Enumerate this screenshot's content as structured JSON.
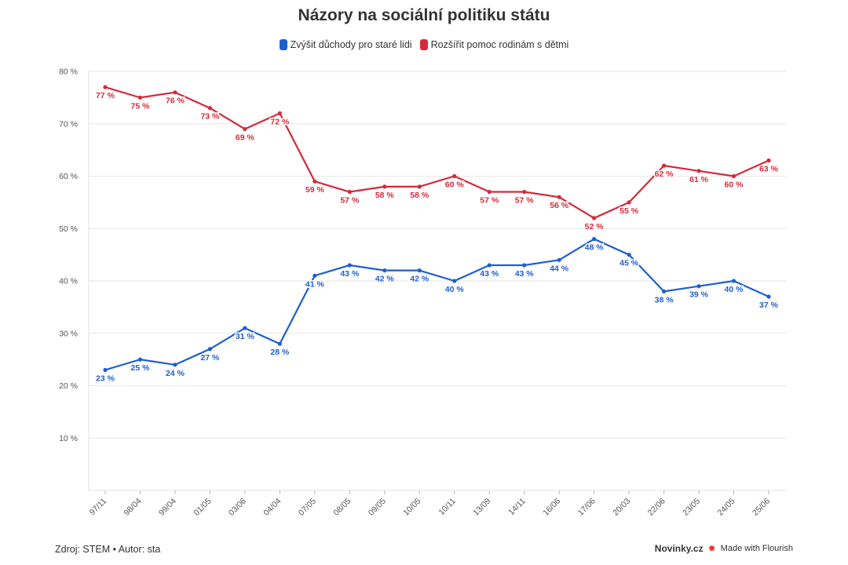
{
  "title": "Názory na sociální politiku státu",
  "legend": [
    {
      "label": "Zvýšit důchody pro staré lidi",
      "color": "#1f5fcc"
    },
    {
      "label": "Rozšířit pomoc rodinám s dětmi",
      "color": "#d42a3a"
    }
  ],
  "footer": {
    "source": "Zdroj: STEM • Autor: sta",
    "brand": "Novinky.cz",
    "flourish": "Made with Flourish"
  },
  "chart_data": {
    "type": "line",
    "title": "Názory na sociální politiku státu",
    "x": [
      "97/11",
      "98/04",
      "99/04",
      "01/05",
      "03/06",
      "04/04",
      "07/05",
      "08/05",
      "09/05",
      "10/05",
      "10/11",
      "13/09",
      "14/11",
      "16/06",
      "17/06",
      "20/03",
      "22/06",
      "23/05",
      "24/05",
      "25/06"
    ],
    "series": [
      {
        "name": "Zvýšit důchody pro staré lidi",
        "color": "#1f5fcc",
        "values": [
          23,
          25,
          24,
          27,
          31,
          28,
          41,
          43,
          42,
          42,
          40,
          43,
          43,
          44,
          48,
          45,
          38,
          39,
          40,
          37
        ]
      },
      {
        "name": "Rozšířit pomoc rodinám s dětmi",
        "color": "#d42a3a",
        "values": [
          77,
          75,
          76,
          73,
          69,
          72,
          59,
          57,
          58,
          58,
          60,
          57,
          57,
          56,
          52,
          55,
          62,
          61,
          60,
          63
        ]
      }
    ],
    "y_ticks": [
      10,
      20,
      30,
      40,
      50,
      60,
      70,
      80
    ],
    "y_tick_suffix": " %",
    "data_label_suffix": " %",
    "ylim": [
      0,
      80
    ],
    "grid": true,
    "legend_position": "top-center"
  }
}
